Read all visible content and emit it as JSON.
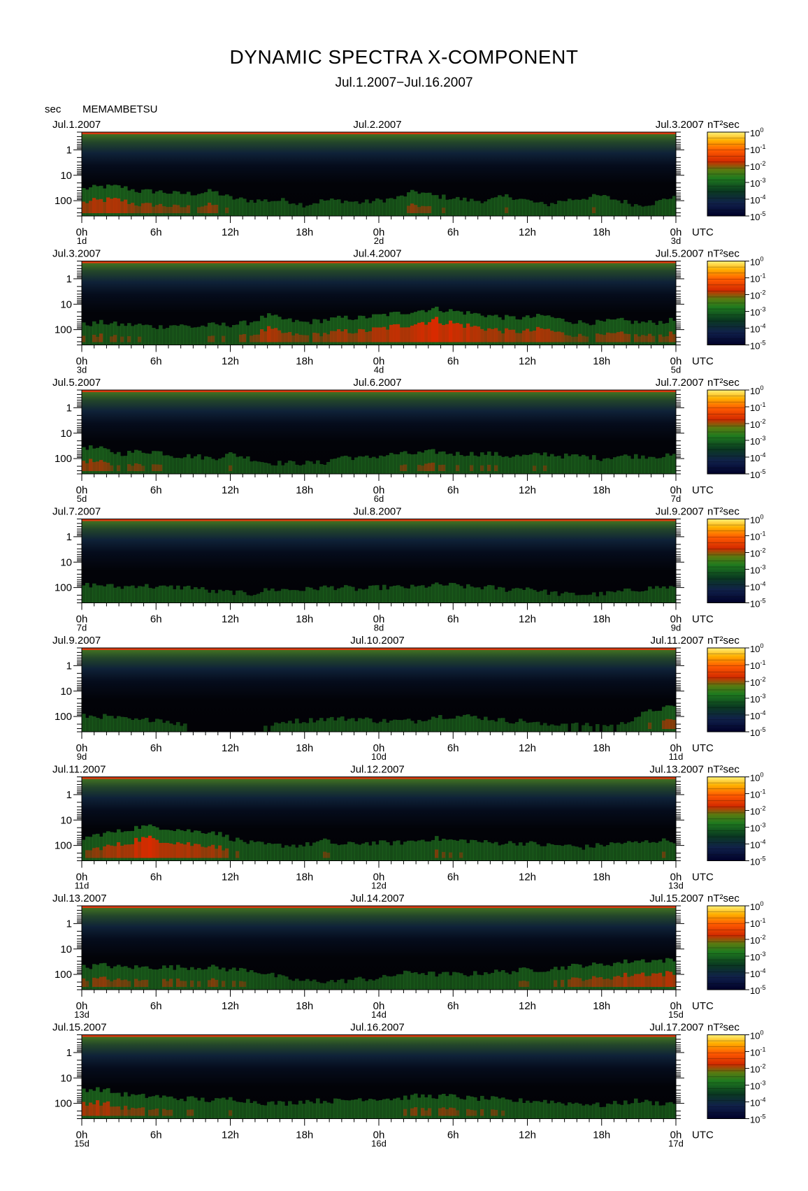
{
  "title": "DYNAMIC SPECTRA X-COMPONENT",
  "subtitle": "Jul.1.2007−Jul.16.2007",
  "station": "MEMAMBETSU",
  "y_unit": "sec",
  "colorbar_unit": "nT²sec",
  "x_unit": "UTC",
  "colors": {
    "low": "#000033",
    "mid": "#1a7a1a",
    "high": "#ff2a00",
    "top": "#fff066"
  },
  "chart_data": {
    "type": "heatmap",
    "description_of_axes": "x = time (UTC hours over 2 days per panel), y = period in seconds (log scale, increasing downward), color = power nT^2 sec (log scale)",
    "y_ticks": [
      "1",
      "10",
      "100"
    ],
    "x_ticks": [
      "0h",
      "6h",
      "12h",
      "18h",
      "0h",
      "6h",
      "12h",
      "18h",
      "0h"
    ],
    "colorbar_ticks": [
      "0",
      "-1",
      "-2",
      "-3",
      "-4",
      "-5"
    ],
    "colorbar_range_log10": [
      -5,
      0
    ],
    "panels": [
      {
        "date_left": "Jul.1.2007",
        "date_mid": "Jul.2.2007",
        "date_right": "Jul.3.2007",
        "day_labels": [
          "1d",
          "2d",
          "3d"
        ],
        "activity": [
          0.55,
          0.6,
          0.6,
          0.5,
          0.5,
          0.45,
          0.45,
          0.5,
          0.35,
          0.3,
          0.3,
          0.3,
          0.2,
          0.3,
          0.3,
          0.25,
          0.3,
          0.35,
          0.5,
          0.4,
          0.35,
          0.3,
          0.3,
          0.4,
          0.3,
          0.2,
          0.3,
          0.35,
          0.4,
          0.3,
          0.2,
          0.25,
          0.4
        ]
      },
      {
        "date_left": "Jul.3.2007",
        "date_mid": "Jul.4.2007",
        "date_right": "Jul.5.2007",
        "day_labels": [
          "3d",
          "4d",
          "5d"
        ],
        "activity": [
          0.4,
          0.45,
          0.4,
          0.4,
          0.35,
          0.4,
          0.35,
          0.4,
          0.4,
          0.45,
          0.6,
          0.5,
          0.45,
          0.5,
          0.55,
          0.55,
          0.6,
          0.65,
          0.7,
          0.75,
          0.7,
          0.65,
          0.6,
          0.55,
          0.55,
          0.6,
          0.5,
          0.45,
          0.45,
          0.5,
          0.45,
          0.45,
          0.5
        ]
      },
      {
        "date_left": "Jul.5.2007",
        "date_mid": "Jul.6.2007",
        "date_right": "Jul.7.2007",
        "day_labels": [
          "5d",
          "6d",
          "7d"
        ],
        "activity": [
          0.55,
          0.5,
          0.4,
          0.45,
          0.45,
          0.35,
          0.35,
          0.3,
          0.4,
          0.3,
          0.2,
          0.2,
          0.2,
          0.2,
          0.35,
          0.3,
          0.35,
          0.4,
          0.4,
          0.45,
          0.4,
          0.4,
          0.4,
          0.35,
          0.35,
          0.4,
          0.35,
          0.35,
          0.3,
          0.35,
          0.35,
          0.35,
          0.35
        ]
      },
      {
        "date_left": "Jul.7.2007",
        "date_mid": "Jul.8.2007",
        "date_right": "Jul.9.2007",
        "day_labels": [
          "7d",
          "8d",
          "9d"
        ],
        "activity": [
          0.35,
          0.35,
          0.3,
          0.35,
          0.3,
          0.3,
          0.3,
          0.2,
          0.2,
          0.15,
          0.25,
          0.25,
          0.25,
          0.3,
          0.3,
          0.25,
          0.3,
          0.3,
          0.3,
          0.35,
          0.35,
          0.3,
          0.3,
          0.25,
          0.3,
          0.2,
          0.15,
          0.15,
          0.15,
          0.2,
          0.25,
          0.3,
          0.3
        ]
      },
      {
        "date_left": "Jul.9.2007",
        "date_mid": "Jul.10.2007",
        "date_right": "Jul.11.2007",
        "day_labels": [
          "9d",
          "10d",
          "11d"
        ],
        "activity": [
          0.3,
          0.3,
          0.25,
          0.2,
          0.25,
          0.15,
          0.05,
          0.05,
          0.05,
          0.05,
          0.05,
          0.2,
          0.2,
          0.25,
          0.25,
          0.25,
          0.2,
          0.2,
          0.2,
          0.3,
          0.3,
          0.3,
          0.25,
          0.2,
          0.2,
          0.1,
          0.15,
          0.1,
          0.1,
          0.1,
          0.3,
          0.45,
          0.5
        ]
      },
      {
        "date_left": "Jul.11.2007",
        "date_mid": "Jul.12.2007",
        "date_right": "Jul.13.2007",
        "day_labels": [
          "11d",
          "12d",
          "13d"
        ],
        "activity": [
          0.45,
          0.55,
          0.6,
          0.7,
          0.7,
          0.65,
          0.6,
          0.6,
          0.45,
          0.35,
          0.3,
          0.3,
          0.3,
          0.4,
          0.3,
          0.35,
          0.35,
          0.35,
          0.4,
          0.45,
          0.4,
          0.4,
          0.35,
          0.35,
          0.35,
          0.3,
          0.3,
          0.25,
          0.3,
          0.35,
          0.35,
          0.4,
          0.4
        ]
      },
      {
        "date_left": "Jul.13.2007",
        "date_mid": "Jul.14.2007",
        "date_right": "Jul.15.2007",
        "day_labels": [
          "13d",
          "14d",
          "15d"
        ],
        "activity": [
          0.45,
          0.5,
          0.45,
          0.45,
          0.45,
          0.45,
          0.45,
          0.45,
          0.4,
          0.4,
          0.3,
          0.2,
          0.15,
          0.15,
          0.15,
          0.2,
          0.2,
          0.3,
          0.35,
          0.3,
          0.3,
          0.3,
          0.35,
          0.35,
          0.4,
          0.4,
          0.45,
          0.5,
          0.5,
          0.55,
          0.6,
          0.6,
          0.6
        ]
      },
      {
        "date_left": "Jul.15.2007",
        "date_mid": "Jul.16.2007",
        "date_right": "Jul.17.2007",
        "day_labels": [
          "15d",
          "16d",
          "17d"
        ],
        "activity": [
          0.6,
          0.6,
          0.5,
          0.45,
          0.45,
          0.4,
          0.4,
          0.35,
          0.4,
          0.35,
          0.3,
          0.3,
          0.35,
          0.35,
          0.35,
          0.4,
          0.4,
          0.4,
          0.45,
          0.45,
          0.45,
          0.4,
          0.4,
          0.35,
          0.35,
          0.35,
          0.3,
          0.3,
          0.25,
          0.3,
          0.35,
          0.3,
          0.3
        ]
      }
    ]
  }
}
